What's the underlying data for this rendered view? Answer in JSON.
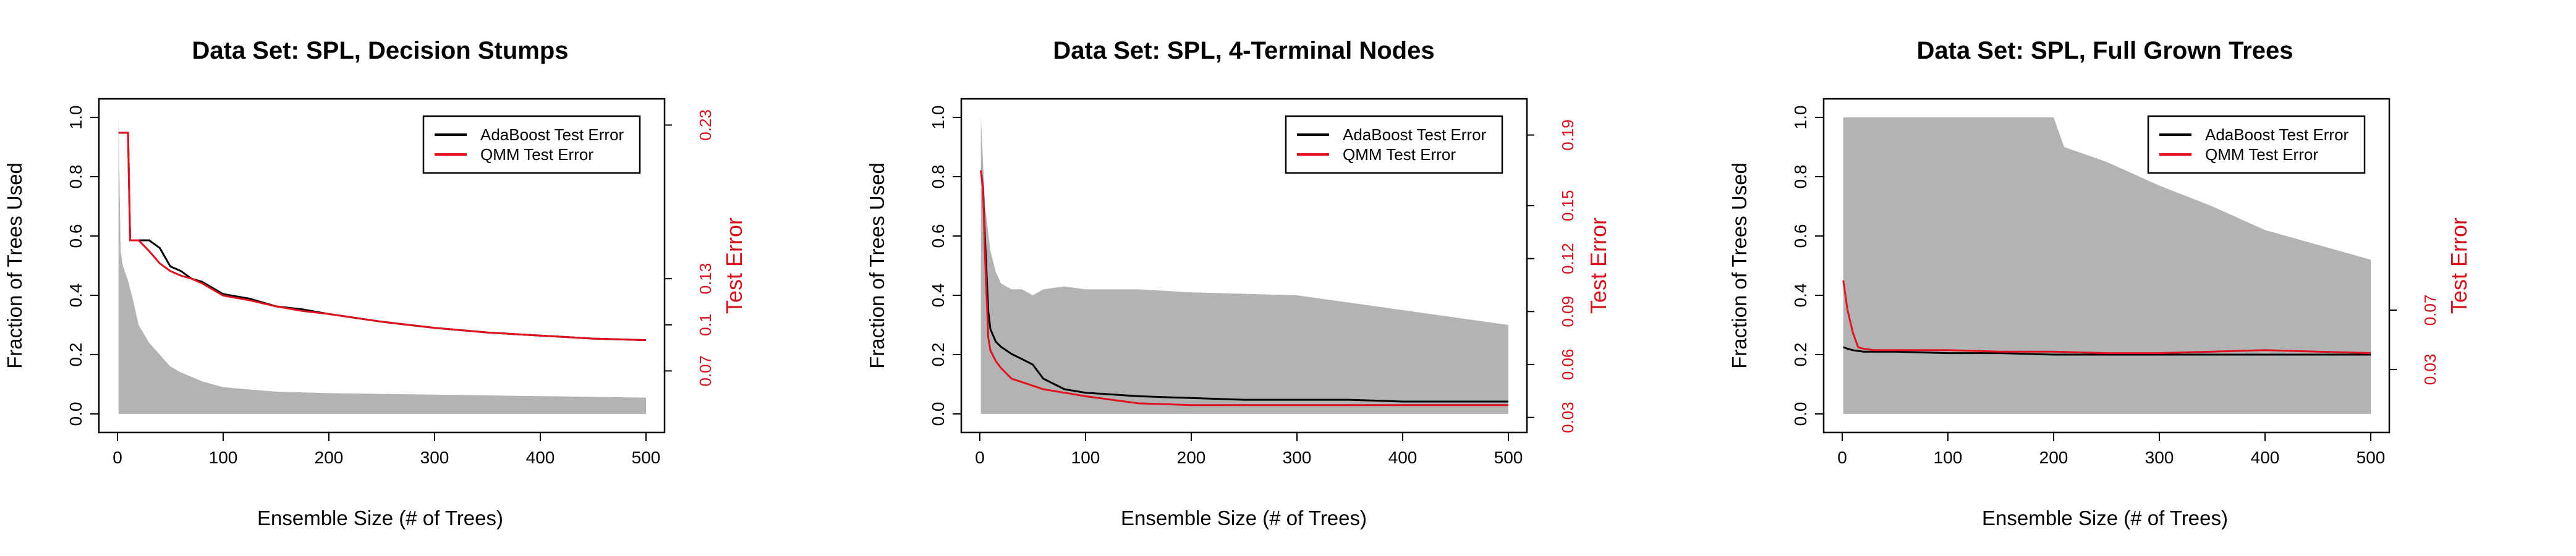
{
  "chart_data": [
    {
      "type": "line",
      "title": "Data Set: SPL, Decision Stumps",
      "xlabel": "Ensemble Size (# of Trees)",
      "ylabel": "Fraction of Trees Used",
      "y2label": "Test Error",
      "xlim": [
        0,
        500
      ],
      "ylim": [
        0,
        1.0
      ],
      "y2lim": [
        0.042,
        0.235
      ],
      "xticks": [
        "0",
        "100",
        "200",
        "300",
        "400",
        "500"
      ],
      "yticks": [
        "0.0",
        "0.2",
        "0.4",
        "0.6",
        "0.8",
        "1.0"
      ],
      "y2ticks": [
        "0.07",
        "0.1",
        "0.13",
        "0.23"
      ],
      "legend": {
        "position": "top-right",
        "entries": [
          "AdaBoost Test Error",
          "QMM Test Error"
        ]
      },
      "series": [
        {
          "name": "AdaBoost Test Error",
          "color": "#000000",
          "x": [
            1,
            5,
            10,
            12,
            20,
            30,
            40,
            50,
            60,
            70,
            80,
            100,
            125,
            150,
            175,
            200,
            250,
            300,
            350,
            400,
            450,
            500
          ],
          "values": [
            0.225,
            0.225,
            0.225,
            0.155,
            0.155,
            0.155,
            0.15,
            0.138,
            0.135,
            0.13,
            0.128,
            0.12,
            0.117,
            0.112,
            0.11,
            0.107,
            0.102,
            0.098,
            0.095,
            0.093,
            0.091,
            0.09
          ]
        },
        {
          "name": "QMM Test Error",
          "color": "#e0121f",
          "x": [
            1,
            5,
            10,
            12,
            20,
            30,
            40,
            50,
            60,
            70,
            80,
            100,
            125,
            150,
            175,
            200,
            250,
            300,
            350,
            400,
            450,
            500
          ],
          "values": [
            0.225,
            0.225,
            0.225,
            0.155,
            0.155,
            0.148,
            0.14,
            0.135,
            0.132,
            0.13,
            0.127,
            0.119,
            0.116,
            0.112,
            0.109,
            0.107,
            0.102,
            0.098,
            0.095,
            0.093,
            0.091,
            0.09
          ]
        }
      ],
      "fraction_used": {
        "x": [
          1,
          3,
          5,
          10,
          15,
          20,
          30,
          40,
          50,
          60,
          80,
          100,
          150,
          200,
          300,
          400,
          500
        ],
        "upper": [
          1.0,
          0.55,
          0.5,
          0.45,
          0.38,
          0.3,
          0.24,
          0.2,
          0.16,
          0.14,
          0.11,
          0.09,
          0.075,
          0.07,
          0.065,
          0.06,
          0.055
        ],
        "lower": [
          0,
          0,
          0,
          0,
          0,
          0,
          0,
          0,
          0,
          0,
          0,
          0,
          0,
          0,
          0,
          0,
          0
        ],
        "color": "#b3b3b3"
      }
    },
    {
      "type": "line",
      "title": "Data Set: SPL, 4-Terminal Nodes",
      "xlabel": "Ensemble Size (# of Trees)",
      "ylabel": "Fraction of Trees Used",
      "y2label": "Test Error",
      "xlim": [
        0,
        500
      ],
      "ylim": [
        0,
        1.0
      ],
      "y2lim": [
        0.032,
        0.2
      ],
      "xticks": [
        "0",
        "100",
        "200",
        "300",
        "400",
        "500"
      ],
      "yticks": [
        "0.0",
        "0.2",
        "0.4",
        "0.6",
        "0.8",
        "1.0"
      ],
      "y2ticks": [
        "0.03",
        "0.06",
        "0.09",
        "0.12",
        "0.15",
        "0.19"
      ],
      "legend": {
        "position": "top-right",
        "entries": [
          "AdaBoost Test Error",
          "QMM Test Error"
        ]
      },
      "series": [
        {
          "name": "AdaBoost Test Error",
          "color": "#000000",
          "x": [
            1,
            3,
            5,
            8,
            10,
            15,
            20,
            25,
            30,
            40,
            50,
            60,
            80,
            100,
            150,
            200,
            250,
            300,
            350,
            400,
            450,
            500
          ],
          "values": [
            0.17,
            0.16,
            0.13,
            0.09,
            0.08,
            0.073,
            0.07,
            0.068,
            0.066,
            0.063,
            0.06,
            0.052,
            0.046,
            0.044,
            0.042,
            0.041,
            0.04,
            0.04,
            0.04,
            0.039,
            0.039,
            0.039
          ]
        },
        {
          "name": "QMM Test Error",
          "color": "#e0121f",
          "x": [
            1,
            3,
            5,
            8,
            10,
            15,
            20,
            25,
            30,
            40,
            50,
            60,
            80,
            100,
            150,
            200,
            250,
            300,
            350,
            400,
            450,
            500
          ],
          "values": [
            0.17,
            0.16,
            0.12,
            0.075,
            0.068,
            0.062,
            0.058,
            0.055,
            0.052,
            0.05,
            0.048,
            0.046,
            0.044,
            0.042,
            0.038,
            0.037,
            0.037,
            0.037,
            0.037,
            0.037,
            0.037,
            0.037
          ]
        }
      ],
      "fraction_used": {
        "x": [
          1,
          3,
          5,
          10,
          15,
          20,
          30,
          40,
          50,
          60,
          80,
          100,
          150,
          200,
          300,
          400,
          500
        ],
        "upper": [
          1.0,
          0.85,
          0.7,
          0.55,
          0.48,
          0.44,
          0.42,
          0.42,
          0.4,
          0.42,
          0.43,
          0.42,
          0.42,
          0.41,
          0.4,
          0.35,
          0.3
        ],
        "lower": [
          0,
          0,
          0,
          0,
          0,
          0,
          0,
          0,
          0,
          0,
          0,
          0,
          0,
          0,
          0,
          0,
          0
        ],
        "color": "#b3b3b3"
      }
    },
    {
      "type": "line",
      "title": "Data Set: SPL, Full Grown Trees",
      "xlabel": "Ensemble Size (# of Trees)",
      "ylabel": "Fraction of Trees Used",
      "y2label": "Test Error",
      "xlim": [
        0,
        500
      ],
      "ylim": [
        0,
        1.0
      ],
      "y2lim": [
        0.0,
        0.2
      ],
      "xticks": [
        "0",
        "100",
        "200",
        "300",
        "400",
        "500"
      ],
      "yticks": [
        "0.0",
        "0.2",
        "0.4",
        "0.6",
        "0.8",
        "1.0"
      ],
      "y2ticks": [
        "0.03",
        "0.07"
      ],
      "legend": {
        "position": "top-right",
        "entries": [
          "AdaBoost Test Error",
          "QMM Test Error"
        ]
      },
      "series": [
        {
          "name": "AdaBoost Test Error",
          "color": "#000000",
          "x": [
            1,
            5,
            10,
            20,
            30,
            50,
            100,
            150,
            200,
            250,
            300,
            350,
            400,
            450,
            500
          ],
          "values": [
            0.045,
            0.044,
            0.043,
            0.042,
            0.042,
            0.042,
            0.041,
            0.041,
            0.04,
            0.04,
            0.04,
            0.04,
            0.04,
            0.04,
            0.04
          ]
        },
        {
          "name": "QMM Test Error",
          "color": "#e0121f",
          "x": [
            1,
            5,
            10,
            15,
            20,
            30,
            50,
            100,
            150,
            200,
            250,
            300,
            350,
            400,
            450,
            500
          ],
          "values": [
            0.09,
            0.07,
            0.055,
            0.045,
            0.044,
            0.043,
            0.043,
            0.043,
            0.042,
            0.042,
            0.041,
            0.041,
            0.042,
            0.043,
            0.042,
            0.041
          ]
        }
      ],
      "fraction_used": {
        "x": [
          1,
          50,
          100,
          150,
          200,
          210,
          250,
          300,
          350,
          400,
          450,
          500
        ],
        "upper": [
          1.0,
          1.0,
          1.0,
          1.0,
          1.0,
          0.9,
          0.85,
          0.77,
          0.7,
          0.62,
          0.57,
          0.52
        ],
        "lower": [
          0,
          0,
          0,
          0,
          0,
          0,
          0,
          0,
          0,
          0,
          0,
          0
        ],
        "color": "#b3b3b3"
      }
    }
  ]
}
